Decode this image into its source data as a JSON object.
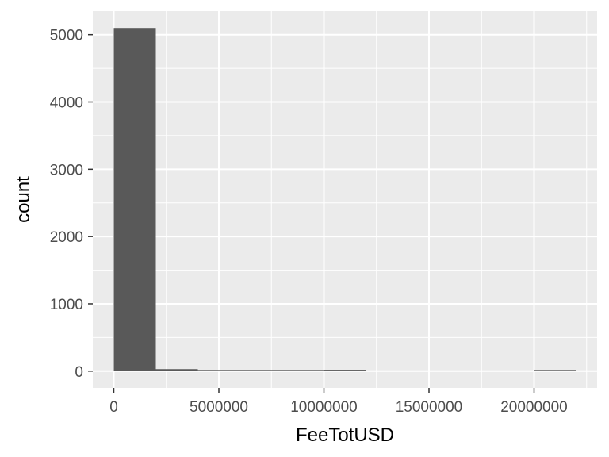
{
  "chart_data": {
    "type": "bar",
    "subtype": "histogram",
    "title": "",
    "xlabel": "FeeTotUSD",
    "ylabel": "count",
    "xlim": [
      -1000000,
      23000000
    ],
    "ylim": [
      -250,
      5350
    ],
    "x_ticks": [
      0,
      5000000,
      10000000,
      15000000,
      20000000
    ],
    "x_tick_labels": [
      "0",
      "5000000",
      "10000000",
      "15000000",
      "20000000"
    ],
    "y_ticks": [
      0,
      1000,
      2000,
      3000,
      4000,
      5000
    ],
    "y_tick_labels": [
      "0",
      "1000",
      "2000",
      "3000",
      "4000",
      "5000"
    ],
    "bin_width": 2000000,
    "bins": [
      {
        "x0": 0,
        "x1": 2000000,
        "count": 5100
      },
      {
        "x0": 2000000,
        "x1": 4000000,
        "count": 30
      },
      {
        "x0": 4000000,
        "x1": 6000000,
        "count": 8
      },
      {
        "x0": 6000000,
        "x1": 8000000,
        "count": 5
      },
      {
        "x0": 8000000,
        "x1": 10000000,
        "count": 5
      },
      {
        "x0": 10000000,
        "x1": 12000000,
        "count": 20
      },
      {
        "x0": 12000000,
        "x1": 14000000,
        "count": 0
      },
      {
        "x0": 14000000,
        "x1": 16000000,
        "count": 0
      },
      {
        "x0": 16000000,
        "x1": 18000000,
        "count": 0
      },
      {
        "x0": 18000000,
        "x1": 20000000,
        "count": 0
      },
      {
        "x0": 20000000,
        "x1": 22000000,
        "count": 1
      }
    ],
    "grid": true,
    "legend": "none",
    "colors": {
      "panel_background": "#ebebeb",
      "grid_major": "#ffffff",
      "bar_fill": "#595959",
      "tick_text": "#4d4d4d",
      "title_text": "#000000"
    }
  }
}
